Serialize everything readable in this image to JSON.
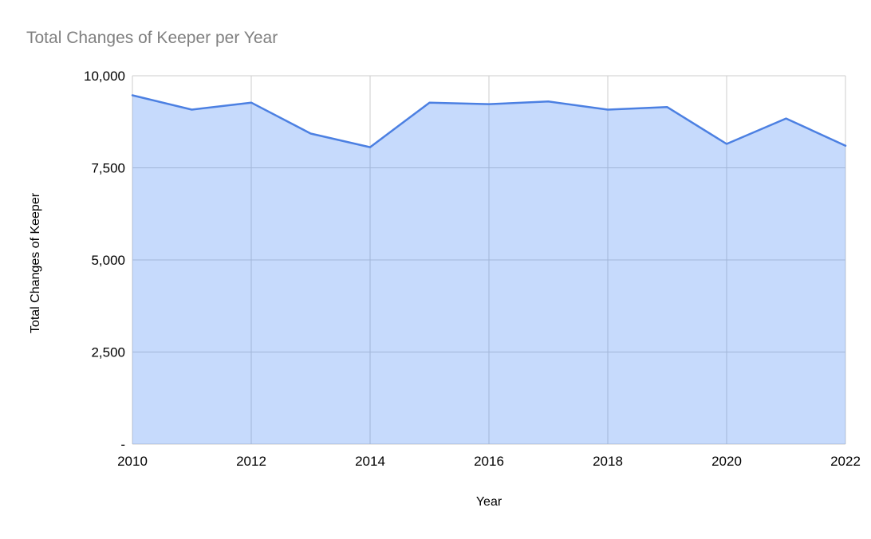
{
  "page": {
    "background": "#ffffff"
  },
  "chart_data": {
    "type": "area",
    "title": "Total Changes of Keeper per Year",
    "xlabel": "Year",
    "ylabel": "Total Changes of Keeper",
    "x": [
      2010,
      2011,
      2012,
      2013,
      2014,
      2015,
      2016,
      2017,
      2018,
      2019,
      2020,
      2021,
      2022
    ],
    "series": [
      {
        "name": "Total Changes of Keeper",
        "values": [
          9470,
          9080,
          9270,
          8430,
          8060,
          9270,
          9230,
          9300,
          9080,
          9150,
          8150,
          8840,
          8100
        ]
      }
    ],
    "xlim": [
      2010,
      2022
    ],
    "ylim": [
      0,
      10000
    ],
    "x_ticks": [
      {
        "value": 2010,
        "label": "2010"
      },
      {
        "value": 2012,
        "label": "2012"
      },
      {
        "value": 2014,
        "label": "2014"
      },
      {
        "value": 2016,
        "label": "2016"
      },
      {
        "value": 2018,
        "label": "2018"
      },
      {
        "value": 2020,
        "label": "2020"
      },
      {
        "value": 2022,
        "label": "2022"
      }
    ],
    "y_ticks": [
      {
        "value": 0,
        "label": "-"
      },
      {
        "value": 2500,
        "label": "2,500"
      },
      {
        "value": 5000,
        "label": "5,000"
      },
      {
        "value": 7500,
        "label": "7,500"
      },
      {
        "value": 10000,
        "label": "10,000"
      }
    ],
    "grid": true,
    "legend": "none",
    "colors": {
      "line": "#4c80e2",
      "fill": "#4285f4",
      "fill_opacity": 0.3,
      "gridline": "#cccccc",
      "title_text": "#808080",
      "axis_text": "#000000"
    }
  }
}
